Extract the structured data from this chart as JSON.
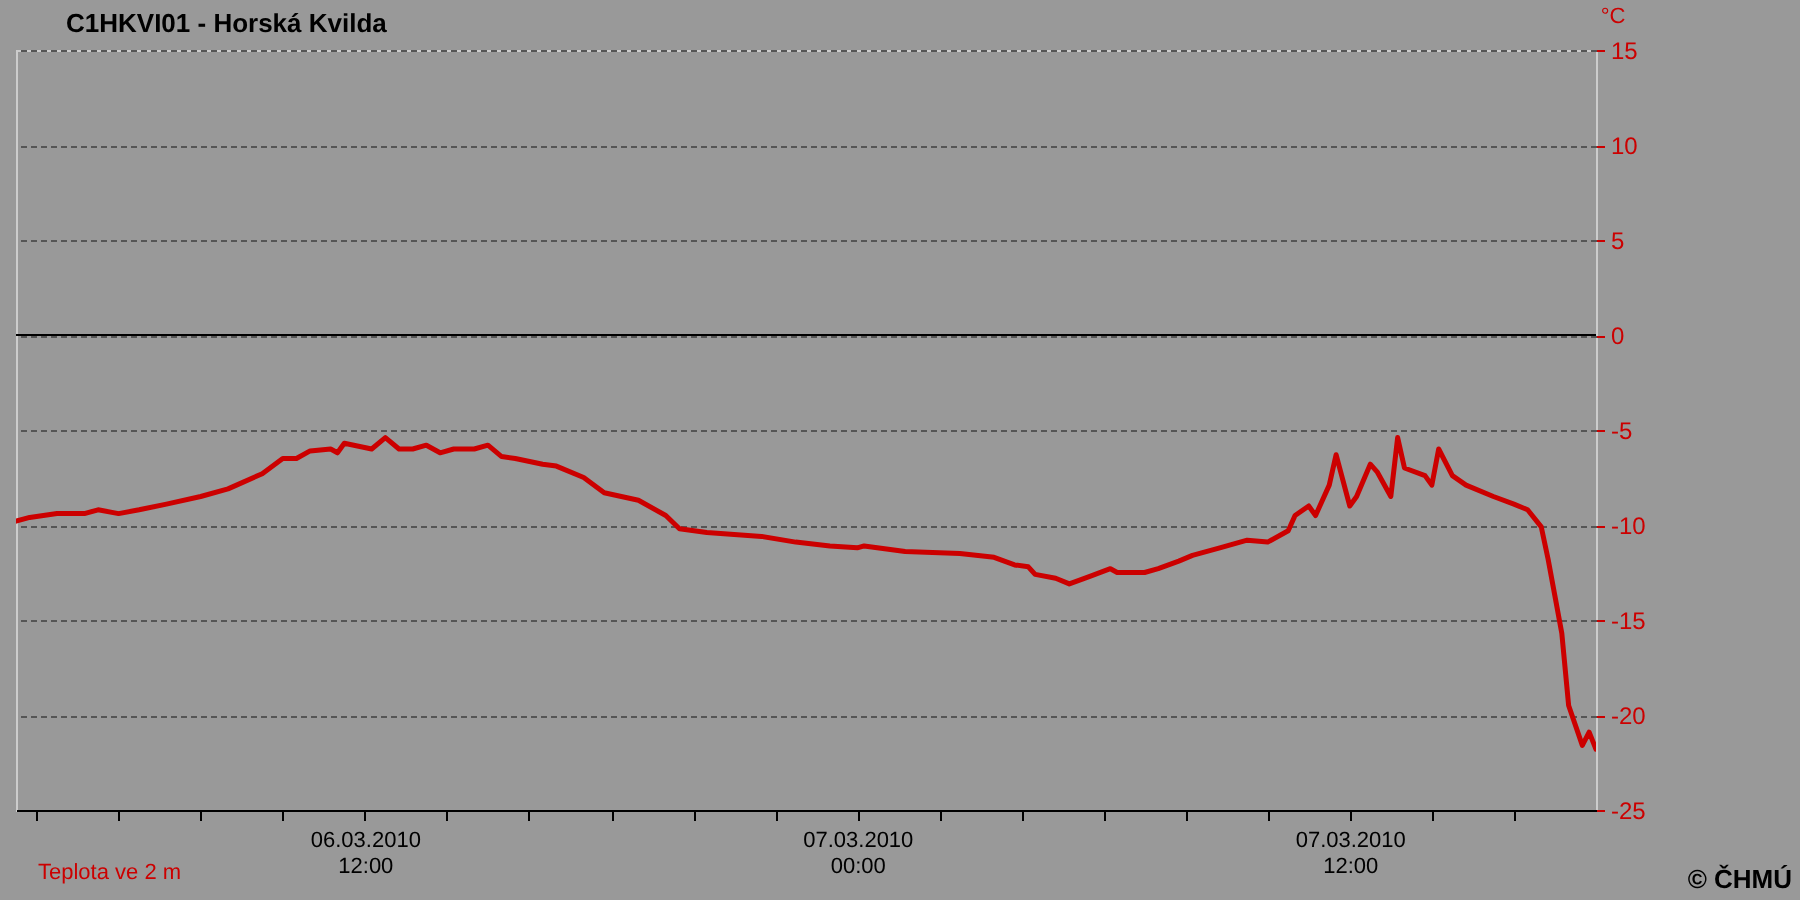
{
  "chart_data": {
    "type": "line",
    "title": "C1HKVI01 - Horská Kvilda",
    "ylabel": "°C",
    "x": [
      "2010-03-06T03:30",
      "2010-03-06T03:50",
      "2010-03-06T04:30",
      "2010-03-06T05:10",
      "2010-03-06T05:30",
      "2010-03-06T06:00",
      "2010-03-06T06:30",
      "2010-03-06T07:10",
      "2010-03-06T08:00",
      "2010-03-06T08:40",
      "2010-03-06T09:30",
      "2010-03-06T10:00",
      "2010-03-06T10:20",
      "2010-03-06T10:40",
      "2010-03-06T11:10",
      "2010-03-06T11:20",
      "2010-03-06T11:30",
      "2010-03-06T12:10",
      "2010-03-06T12:30",
      "2010-03-06T12:50",
      "2010-03-06T13:10",
      "2010-03-06T13:30",
      "2010-03-06T13:50",
      "2010-03-06T14:10",
      "2010-03-06T14:40",
      "2010-03-06T15:00",
      "2010-03-06T15:20",
      "2010-03-06T15:40",
      "2010-03-06T16:20",
      "2010-03-06T16:40",
      "2010-03-06T17:20",
      "2010-03-06T17:50",
      "2010-03-06T18:40",
      "2010-03-06T19:20",
      "2010-03-06T19:40",
      "2010-03-06T20:20",
      "2010-03-06T21:40",
      "2010-03-06T22:30",
      "2010-03-06T23:20",
      "2010-03-07T00:00",
      "2010-03-07T00:10",
      "2010-03-07T01:10",
      "2010-03-07T02:30",
      "2010-03-07T03:20",
      "2010-03-07T03:50",
      "2010-03-07T04:10",
      "2010-03-07T04:20",
      "2010-03-07T04:50",
      "2010-03-07T05:10",
      "2010-03-07T05:40",
      "2010-03-07T06:10",
      "2010-03-07T06:20",
      "2010-03-07T07:00",
      "2010-03-07T07:20",
      "2010-03-07T07:50",
      "2010-03-07T08:10",
      "2010-03-07T08:50",
      "2010-03-07T09:30",
      "2010-03-07T10:00",
      "2010-03-07T10:30",
      "2010-03-07T10:40",
      "2010-03-07T11:00",
      "2010-03-07T11:10",
      "2010-03-07T11:30",
      "2010-03-07T11:40",
      "2010-03-07T12:00",
      "2010-03-07T12:10",
      "2010-03-07T12:30",
      "2010-03-07T12:40",
      "2010-03-07T13:00",
      "2010-03-07T13:10",
      "2010-03-07T13:20",
      "2010-03-07T13:50",
      "2010-03-07T14:00",
      "2010-03-07T14:10",
      "2010-03-07T14:30",
      "2010-03-07T14:50",
      "2010-03-07T15:30",
      "2010-03-07T16:00",
      "2010-03-07T16:20",
      "2010-03-07T16:40",
      "2010-03-07T16:50",
      "2010-03-07T17:10",
      "2010-03-07T17:20",
      "2010-03-07T17:40",
      "2010-03-07T17:50",
      "2010-03-07T18:00"
    ],
    "series": [
      {
        "name": "Teplota ve 2 m",
        "color": "#cc0000",
        "values": [
          -9.8,
          -9.6,
          -9.4,
          -9.4,
          -9.2,
          -9.4,
          -9.2,
          -8.9,
          -8.5,
          -8.1,
          -7.3,
          -6.5,
          -6.5,
          -6.1,
          -6.0,
          -6.2,
          -5.7,
          -6.0,
          -5.4,
          -6.0,
          -6.0,
          -5.8,
          -6.2,
          -6.0,
          -6.0,
          -5.8,
          -6.4,
          -6.5,
          -6.8,
          -6.9,
          -7.5,
          -8.3,
          -8.7,
          -9.5,
          -10.2,
          -10.4,
          -10.6,
          -10.9,
          -11.1,
          -11.2,
          -11.1,
          -11.4,
          -11.5,
          -11.7,
          -12.1,
          -12.2,
          -12.6,
          -12.8,
          -13.1,
          -12.7,
          -12.3,
          -12.5,
          -12.5,
          -12.3,
          -11.9,
          -11.6,
          -11.2,
          -10.8,
          -10.9,
          -10.3,
          -9.5,
          -9.0,
          -9.5,
          -7.9,
          -6.3,
          -9.0,
          -8.5,
          -6.8,
          -7.2,
          -8.5,
          -5.4,
          -7.0,
          -7.4,
          -7.9,
          -6.0,
          -7.4,
          -7.9,
          -8.5,
          -8.9,
          -9.2,
          -10.1,
          -11.8,
          -15.7,
          -19.5,
          -21.6,
          -20.9,
          -21.8
        ]
      }
    ],
    "xlim": [
      "2010-03-06T03:30",
      "2010-03-07T18:00"
    ],
    "xticks": [
      {
        "value": "2010-03-06T04:00",
        "label": null
      },
      {
        "value": "2010-03-06T06:00",
        "label": null
      },
      {
        "value": "2010-03-06T08:00",
        "label": null
      },
      {
        "value": "2010-03-06T10:00",
        "label": null
      },
      {
        "value": "2010-03-06T12:00",
        "label": "06.03.2010\n12:00"
      },
      {
        "value": "2010-03-06T14:00",
        "label": null
      },
      {
        "value": "2010-03-06T16:00",
        "label": null
      },
      {
        "value": "2010-03-06T18:00",
        "label": null
      },
      {
        "value": "2010-03-06T20:00",
        "label": null
      },
      {
        "value": "2010-03-06T22:00",
        "label": null
      },
      {
        "value": "2010-03-07T00:00",
        "label": "07.03.2010\n00:00"
      },
      {
        "value": "2010-03-07T02:00",
        "label": null
      },
      {
        "value": "2010-03-07T04:00",
        "label": null
      },
      {
        "value": "2010-03-07T06:00",
        "label": null
      },
      {
        "value": "2010-03-07T08:00",
        "label": null
      },
      {
        "value": "2010-03-07T10:00",
        "label": null
      },
      {
        "value": "2010-03-07T12:00",
        "label": "07.03.2010\n12:00"
      },
      {
        "value": "2010-03-07T14:00",
        "label": null
      },
      {
        "value": "2010-03-07T16:00",
        "label": null
      }
    ],
    "ylim": [
      -25,
      15
    ],
    "yticks": [
      -25,
      -20,
      -15,
      -10,
      -5,
      0,
      5,
      10,
      15
    ],
    "grid": "y",
    "legend": "bottom left",
    "line_style": "solid",
    "marker": "none",
    "ref_lines": [
      {
        "axis": "y",
        "value": 0,
        "color": "#000000",
        "line_style": "solid"
      }
    ],
    "annotations": [
      "© ČHMÚ"
    ]
  }
}
